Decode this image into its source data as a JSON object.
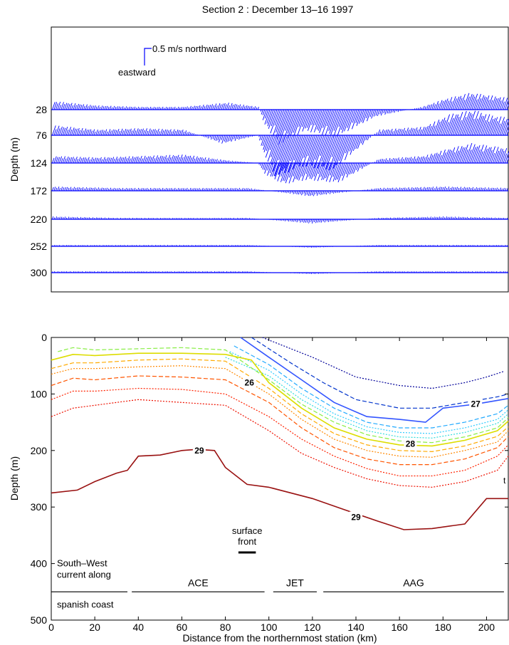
{
  "title": "Section 2 : December 13–16 1997",
  "chart_data": [
    {
      "type": "line",
      "panel": "velocity-vectors",
      "ylabel": "Depth (m)",
      "xlim": [
        0,
        210
      ],
      "depth_levels": [
        "28",
        "76",
        "124",
        "172",
        "220",
        "252",
        "300"
      ],
      "scale_label_north": "0.5 m/s northward",
      "scale_label_east": "eastward",
      "rows": [
        {
          "depth": 28,
          "x": [
            0,
            20,
            40,
            60,
            80,
            95,
            100,
            110,
            120,
            135,
            150,
            170,
            180,
            190,
            200,
            210
          ],
          "v": [
            0.06,
            0.03,
            0.02,
            0.02,
            0.05,
            0.02,
            -0.1,
            -0.25,
            -0.15,
            -0.2,
            -0.05,
            0.02,
            0.08,
            0.12,
            0.1,
            0.08
          ]
        },
        {
          "depth": 76,
          "x": [
            0,
            20,
            40,
            60,
            80,
            95,
            100,
            110,
            120,
            135,
            150,
            170,
            180,
            190,
            200,
            210
          ],
          "v": [
            0.07,
            0.04,
            0.05,
            0.04,
            -0.06,
            0.0,
            -0.12,
            -0.3,
            -0.22,
            -0.25,
            0.04,
            0.06,
            0.15,
            0.18,
            0.14,
            0.12
          ]
        },
        {
          "depth": 124,
          "x": [
            0,
            20,
            40,
            60,
            80,
            95,
            100,
            110,
            120,
            135,
            150,
            170,
            180,
            190,
            200,
            210
          ],
          "v": [
            0.05,
            0.04,
            0.05,
            0.06,
            0.02,
            0.0,
            -0.08,
            -0.15,
            -0.12,
            -0.14,
            0.03,
            0.05,
            0.1,
            0.14,
            0.12,
            0.1
          ]
        },
        {
          "depth": 172,
          "x": [
            0,
            30,
            60,
            90,
            120,
            150,
            180,
            210
          ],
          "v": [
            0.03,
            0.02,
            0.02,
            0.02,
            -0.04,
            0.02,
            0.03,
            0.02
          ]
        },
        {
          "depth": 220,
          "x": [
            0,
            30,
            60,
            90,
            120,
            150,
            180,
            210
          ],
          "v": [
            0.02,
            0.01,
            0.01,
            0.01,
            -0.03,
            0.01,
            0.02,
            0.01
          ]
        },
        {
          "depth": 252,
          "x": [
            0,
            30,
            60,
            90,
            120,
            150,
            180,
            210
          ],
          "v": [
            0.01,
            0.01,
            0.01,
            0.01,
            -0.01,
            0.01,
            0.01,
            0.01
          ]
        },
        {
          "depth": 300,
          "x": [
            0,
            30,
            60,
            90,
            120,
            150,
            180,
            210
          ],
          "v": [
            0.01,
            0.01,
            0.01,
            0.01,
            -0.01,
            0.01,
            0.01,
            0.01
          ]
        }
      ]
    },
    {
      "type": "line",
      "panel": "density-contours",
      "xlabel": "Distance from the northernmost station (km)",
      "ylabel": "Depth (m)",
      "xlim": [
        0,
        210
      ],
      "ylim": [
        0,
        500
      ],
      "xticks": [
        "0",
        "20",
        "40",
        "60",
        "80",
        "100",
        "120",
        "140",
        "160",
        "180",
        "200"
      ],
      "yticks": [
        "0",
        "100",
        "200",
        "300",
        "400",
        "500"
      ],
      "series": [
        {
          "color": "#000099",
          "dash": "dot",
          "x": [
            97,
            120,
            140,
            160,
            175,
            190,
            200,
            208
          ],
          "y": [
            0,
            35,
            70,
            85,
            90,
            80,
            70,
            60
          ]
        },
        {
          "color": "#0033cc",
          "dash": "dash",
          "x": [
            92,
            110,
            125,
            140,
            160,
            175,
            190,
            205,
            210
          ],
          "y": [
            0,
            45,
            80,
            110,
            125,
            125,
            115,
            105,
            100
          ]
        },
        {
          "color": "#3355ff",
          "dash": "solid",
          "label": "27",
          "x": [
            87,
            100,
            115,
            130,
            145,
            160,
            172,
            180,
            195,
            210
          ],
          "y": [
            0,
            35,
            75,
            115,
            140,
            145,
            150,
            125,
            118,
            108
          ]
        },
        {
          "color": "#22aaff",
          "dash": "dash",
          "x": [
            84,
            100,
            115,
            130,
            145,
            160,
            175,
            190,
            205,
            210
          ],
          "y": [
            15,
            48,
            90,
            125,
            150,
            160,
            160,
            150,
            135,
            120
          ]
        },
        {
          "color": "#33ccff",
          "dash": "dot",
          "x": [
            82,
            100,
            115,
            130,
            145,
            160,
            175,
            190,
            205,
            210
          ],
          "y": [
            25,
            58,
            100,
            135,
            158,
            168,
            170,
            160,
            145,
            128
          ]
        },
        {
          "color": "#33dddd",
          "dash": "dot",
          "x": [
            80,
            100,
            115,
            130,
            145,
            160,
            175,
            190,
            205,
            210
          ],
          "y": [
            35,
            68,
            110,
            142,
            165,
            176,
            178,
            168,
            152,
            135
          ]
        },
        {
          "color": "#88ee44",
          "dash": "dash",
          "x": [
            3,
            10,
            20,
            40,
            60,
            80,
            100,
            115,
            130,
            145,
            160,
            175,
            190,
            205,
            210
          ],
          "y": [
            25,
            18,
            22,
            20,
            18,
            22,
            75,
            118,
            150,
            172,
            183,
            186,
            176,
            160,
            142
          ]
        },
        {
          "color": "#dddd00",
          "dash": "solid",
          "label": "28",
          "x": [
            0,
            10,
            20,
            40,
            60,
            80,
            92,
            100,
            115,
            130,
            145,
            160,
            175,
            190,
            205,
            210
          ],
          "y": [
            40,
            30,
            32,
            28,
            28,
            30,
            40,
            80,
            125,
            160,
            180,
            190,
            192,
            182,
            165,
            148
          ]
        },
        {
          "color": "#ffaa00",
          "dash": "dash",
          "x": [
            0,
            10,
            20,
            40,
            60,
            80,
            100,
            115,
            130,
            145,
            160,
            175,
            190,
            205,
            210
          ],
          "y": [
            55,
            45,
            45,
            40,
            38,
            42,
            90,
            135,
            170,
            190,
            200,
            202,
            192,
            175,
            158
          ]
        },
        {
          "color": "#ff8800",
          "dash": "dot",
          "x": [
            0,
            10,
            20,
            40,
            60,
            80,
            100,
            115,
            130,
            145,
            160,
            175,
            190,
            205,
            210
          ],
          "y": [
            65,
            55,
            55,
            52,
            50,
            55,
            100,
            145,
            180,
            200,
            210,
            212,
            200,
            185,
            165
          ]
        },
        {
          "color": "#ff5500",
          "dash": "dash",
          "x": [
            0,
            10,
            20,
            40,
            60,
            80,
            100,
            115,
            130,
            145,
            160,
            175,
            190,
            205,
            210
          ],
          "y": [
            85,
            72,
            75,
            68,
            70,
            75,
            115,
            160,
            195,
            215,
            225,
            225,
            215,
            195,
            175
          ]
        },
        {
          "color": "#ff2200",
          "dash": "dot",
          "x": [
            0,
            10,
            20,
            40,
            60,
            80,
            100,
            115,
            130,
            145,
            160,
            175,
            190,
            205,
            210
          ],
          "y": [
            110,
            95,
            95,
            90,
            92,
            100,
            140,
            180,
            210,
            232,
            245,
            245,
            235,
            210,
            190
          ]
        },
        {
          "color": "#ee1100",
          "dash": "dot",
          "x": [
            0,
            10,
            20,
            40,
            60,
            80,
            100,
            115,
            130,
            145,
            160,
            175,
            190,
            205,
            210
          ],
          "y": [
            140,
            125,
            120,
            110,
            115,
            120,
            165,
            205,
            230,
            250,
            262,
            265,
            255,
            235,
            210
          ]
        },
        {
          "color": "#991111",
          "dash": "solid",
          "label": "29",
          "x": [
            0,
            12,
            20,
            30,
            35,
            40,
            50,
            60,
            67,
            75,
            80,
            90,
            100,
            120,
            135,
            150,
            162,
            175,
            190,
            200,
            210
          ],
          "y": [
            275,
            270,
            255,
            240,
            235,
            210,
            208,
            200,
            198,
            200,
            230,
            260,
            265,
            285,
            305,
            325,
            340,
            338,
            330,
            285,
            285
          ]
        }
      ],
      "contour_labels": [
        {
          "text": "26",
          "x": 91,
          "y": 80
        },
        {
          "text": "27",
          "x": 195,
          "y": 118
        },
        {
          "text": "28",
          "x": 165,
          "y": 188
        },
        {
          "text": "29",
          "x": 68,
          "y": 200
        },
        {
          "text": "29",
          "x": 140,
          "y": 318
        }
      ],
      "annotations": {
        "surface_front": {
          "line1": "surface",
          "line2": "front",
          "x_range": [
            86,
            94
          ],
          "y": 398
        },
        "regions": [
          {
            "name": "ace",
            "label": "ACE",
            "x_range": [
              37,
              98
            ]
          },
          {
            "name": "jet",
            "label": "JET",
            "x_range": [
              102,
              122
            ]
          },
          {
            "name": "aag",
            "label": "AAG",
            "x_range": [
              125,
              208
            ]
          }
        ],
        "current_text_line1": "South–West",
        "current_text_line2": "current along",
        "current_text_line3": "spanish coast",
        "current_range": [
          0,
          35
        ],
        "edge_mark": "t"
      }
    }
  ]
}
